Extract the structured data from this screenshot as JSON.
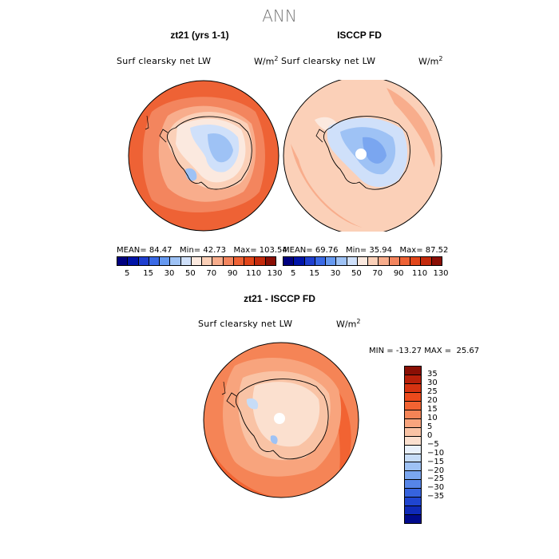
{
  "title": "ANN",
  "panels": [
    {
      "title": "zt21 (yrs 1-1)",
      "variable": "Surf clearsky net LW",
      "unit": "W/m",
      "unit_exp": "2",
      "stats": {
        "mean_label": "MEAN=",
        "mean": "84.47",
        "min_label": "Min=",
        "min": "42.73",
        "max_label": "Max=",
        "max": "103.54"
      }
    },
    {
      "title": "ISCCP FD",
      "variable": "Surf clearsky net LW",
      "unit": "W/m",
      "unit_exp": "2",
      "stats": {
        "mean_label": "MEAN=",
        "mean": "69.76",
        "min_label": "Min=",
        "min": "35.94",
        "max_label": "Max=",
        "max": "87.52"
      }
    },
    {
      "title": "zt21 - ISCCP FD",
      "variable": "Surf clearsky net LW",
      "unit": "W/m",
      "unit_exp": "2",
      "stats": {
        "min_label": "MIN =",
        "min": "-13.27",
        "max_label": "MAX =",
        "max": "25.67"
      }
    }
  ],
  "colorbar_top": {
    "colors": [
      "#00007f",
      "#0014a8",
      "#1f3fcf",
      "#3a6ae6",
      "#6699f0",
      "#9ec2f5",
      "#cfe0fa",
      "#fbe9df",
      "#fbd0b8",
      "#f8ad8c",
      "#f3855e",
      "#ee6235",
      "#e2461a",
      "#c42a0c",
      "#8a0f05"
    ],
    "labels": [
      "5",
      "15",
      "30",
      "50",
      "70",
      "90",
      "110",
      "130"
    ]
  },
  "colorbar_diff": {
    "colors": [
      "#8a0f05",
      "#b8200a",
      "#d63311",
      "#ec4a1c",
      "#f26332",
      "#f58456",
      "#f8a47d",
      "#f9c3a5",
      "#fbe0cf",
      "#e9f1fb",
      "#c6dcf7",
      "#9ec2f5",
      "#7aa6f0",
      "#5685e8",
      "#3663de",
      "#1f45d0",
      "#0f2ab8",
      "#000a8c"
    ],
    "labels": [
      "35",
      "30",
      "25",
      "20",
      "15",
      "10",
      "5",
      "0",
      "−5",
      "−10",
      "−15",
      "−20",
      "−25",
      "−30",
      "−35"
    ]
  }
}
